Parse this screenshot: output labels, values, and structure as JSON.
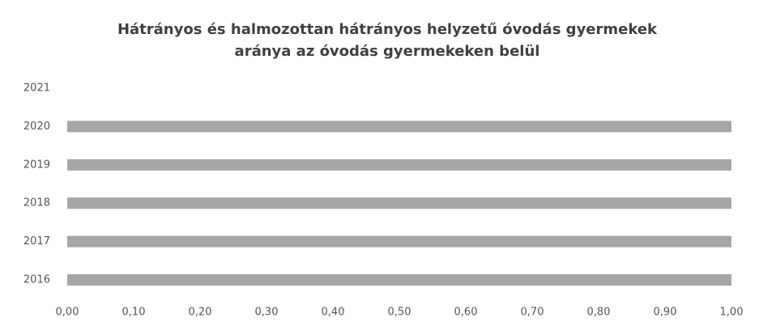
{
  "chart_data": {
    "type": "hbar",
    "title": [
      "Hátrányos és halmozottan hátrányos helyzetű óvodás gyermekek",
      "aránya az óvodás gyermekeken belül"
    ],
    "categories": [
      "2016",
      "2017",
      "2018",
      "2019",
      "2020",
      "2021"
    ],
    "values": [
      1.0,
      1.0,
      1.0,
      1.0,
      1.0,
      null
    ],
    "color": "#a6a6a6",
    "xlim": [
      0,
      1
    ],
    "xticks": [
      {
        "value": 0,
        "label": "0,00"
      },
      {
        "value": 0.1,
        "label": "0,10"
      },
      {
        "value": 0.2,
        "label": "0,20"
      },
      {
        "value": 0.3,
        "label": "0,30"
      },
      {
        "value": 0.4,
        "label": "0,40"
      },
      {
        "value": 0.5,
        "label": "0,50"
      },
      {
        "value": 0.6,
        "label": "0,60"
      },
      {
        "value": 0.7,
        "label": "0,70"
      },
      {
        "value": 0.8,
        "label": "0,80"
      },
      {
        "value": 0.9,
        "label": "0,90"
      },
      {
        "value": 1,
        "label": "1,00"
      }
    ]
  }
}
